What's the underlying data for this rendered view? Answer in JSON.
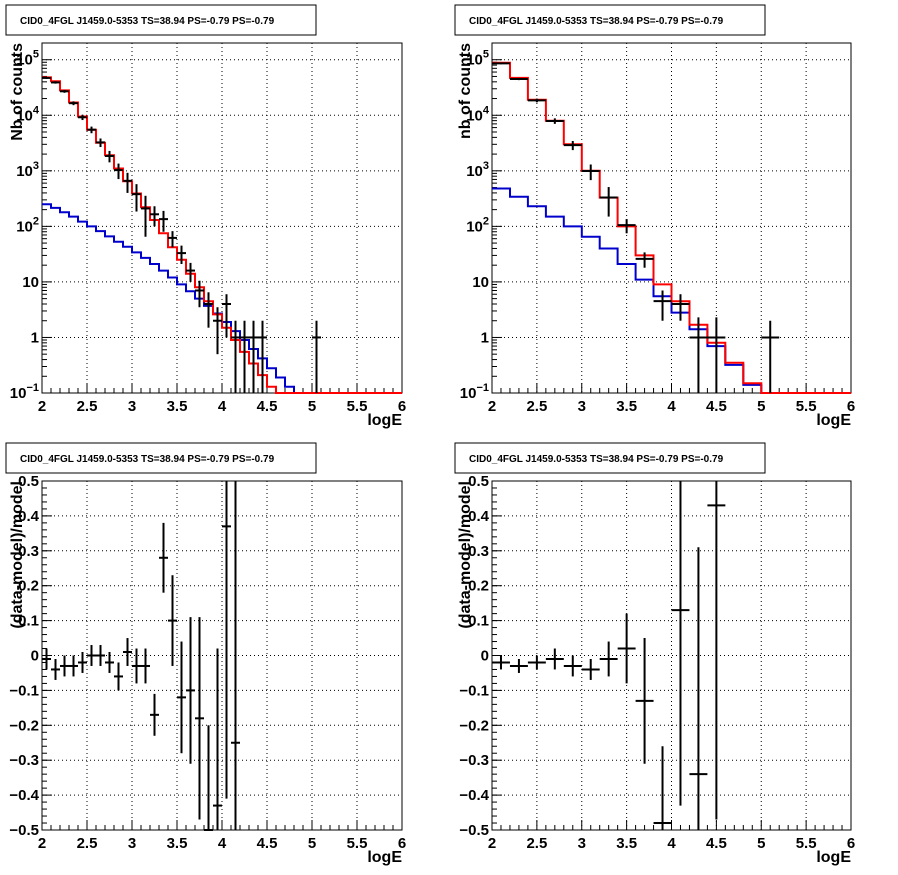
{
  "panels": [
    {
      "title": "CID0_4FGL J1459.0-5353 TS=38.94 PS=-0.79 PS=-0.79",
      "xlabel": "logE",
      "ylabel": "Nb of counts",
      "xlim": [
        2,
        6
      ],
      "ylim": [
        0.1,
        200000
      ],
      "log_y": true,
      "y_ticks": [
        {
          "value": 100000,
          "base": "10",
          "exp": "5"
        },
        {
          "value": 10000,
          "base": "10",
          "exp": "4"
        },
        {
          "value": 1000,
          "base": "10",
          "exp": "3"
        },
        {
          "value": 100,
          "base": "10",
          "exp": "2"
        },
        {
          "value": 10,
          "base": "10",
          "exp": ""
        },
        {
          "value": 1,
          "base": "1",
          "exp": ""
        },
        {
          "value": 0.1,
          "base": "10",
          "exp": "−1"
        }
      ],
      "x_ticks": [
        "2",
        "2.5",
        "3",
        "3.5",
        "4",
        "4.5",
        "5",
        "5.5",
        "6"
      ]
    },
    {
      "title": "CID0_4FGL J1459.0-5353 TS=38.94 PS=-0.79 PS=-0.79",
      "xlabel": "logE",
      "ylabel": "nb of counts",
      "xlim": [
        2,
        6
      ],
      "ylim": [
        0.1,
        200000
      ],
      "log_y": true,
      "y_ticks": [
        {
          "value": 100000,
          "base": "10",
          "exp": "5"
        },
        {
          "value": 10000,
          "base": "10",
          "exp": "4"
        },
        {
          "value": 1000,
          "base": "10",
          "exp": "3"
        },
        {
          "value": 100,
          "base": "10",
          "exp": "2"
        },
        {
          "value": 10,
          "base": "10",
          "exp": ""
        },
        {
          "value": 1,
          "base": "1",
          "exp": ""
        },
        {
          "value": 0.1,
          "base": "10",
          "exp": "−1"
        }
      ],
      "x_ticks": [
        "2",
        "2.5",
        "3",
        "3.5",
        "4",
        "4.5",
        "5",
        "5.5",
        "6"
      ]
    },
    {
      "title": "CID0_4FGL J1459.0-5353 TS=38.94 PS=-0.79 PS=-0.79",
      "xlabel": "logE",
      "ylabel": "(data-model)/model",
      "xlim": [
        2,
        6
      ],
      "ylim": [
        -0.5,
        0.5
      ],
      "log_y": false,
      "y_ticks": [
        {
          "value": 0.5,
          "base": "0.5",
          "exp": ""
        },
        {
          "value": 0.4,
          "base": "0.4",
          "exp": ""
        },
        {
          "value": 0.3,
          "base": "0.3",
          "exp": ""
        },
        {
          "value": 0.2,
          "base": "0.2",
          "exp": ""
        },
        {
          "value": 0.1,
          "base": "0.1",
          "exp": ""
        },
        {
          "value": 0,
          "base": "0",
          "exp": ""
        },
        {
          "value": -0.1,
          "base": "−0.1",
          "exp": ""
        },
        {
          "value": -0.2,
          "base": "−0.2",
          "exp": ""
        },
        {
          "value": -0.3,
          "base": "−0.3",
          "exp": ""
        },
        {
          "value": -0.4,
          "base": "−0.4",
          "exp": ""
        },
        {
          "value": -0.5,
          "base": "−0.5",
          "exp": ""
        }
      ],
      "x_ticks": [
        "2",
        "2.5",
        "3",
        "3.5",
        "4",
        "4.5",
        "5",
        "5.5",
        "6"
      ]
    },
    {
      "title": "CID0_4FGL J1459.0-5353 TS=38.94 PS=-0.79 PS=-0.79",
      "xlabel": "logE",
      "ylabel": "(data-model)/model",
      "xlim": [
        2,
        6
      ],
      "ylim": [
        -0.5,
        0.5
      ],
      "log_y": false,
      "y_ticks": [
        {
          "value": 0.5,
          "base": "0.5",
          "exp": ""
        },
        {
          "value": 0.4,
          "base": "0.4",
          "exp": ""
        },
        {
          "value": 0.3,
          "base": "0.3",
          "exp": ""
        },
        {
          "value": 0.2,
          "base": "0.2",
          "exp": ""
        },
        {
          "value": 0.1,
          "base": "0.1",
          "exp": ""
        },
        {
          "value": 0,
          "base": "0",
          "exp": ""
        },
        {
          "value": -0.1,
          "base": "−0.1",
          "exp": ""
        },
        {
          "value": -0.2,
          "base": "−0.2",
          "exp": ""
        },
        {
          "value": -0.3,
          "base": "−0.3",
          "exp": ""
        },
        {
          "value": -0.4,
          "base": "−0.4",
          "exp": ""
        },
        {
          "value": -0.5,
          "base": "−0.5",
          "exp": ""
        }
      ],
      "x_ticks": [
        "2",
        "2.5",
        "3",
        "3.5",
        "4",
        "4.5",
        "5",
        "5.5",
        "6"
      ]
    }
  ],
  "colors": {
    "data": "#000000",
    "total_model": "#ff0000",
    "source_model": "#0000cc"
  },
  "chart_data": [
    {
      "type": "line",
      "title": "CID0_4FGL J1459.0-5353 TS=38.94 PS=-0.79 PS=-0.79",
      "xlabel": "logE",
      "ylabel": "Nb of counts",
      "ylim": [
        0.1,
        200000
      ],
      "log_y": true,
      "bin_edges": [
        2.0,
        2.1,
        2.2,
        2.3,
        2.4,
        2.5,
        2.6,
        2.7,
        2.8,
        2.9,
        3.0,
        3.1,
        3.2,
        3.3,
        3.4,
        3.5,
        3.6,
        3.7,
        3.8,
        3.9,
        4.0,
        4.1,
        4.2,
        4.3,
        4.4,
        4.5,
        4.6,
        4.7,
        4.8,
        4.9,
        5.0,
        5.1,
        5.2,
        5.3,
        5.4,
        5.5,
        5.6,
        5.7,
        5.8,
        5.9,
        6.0
      ],
      "series": [
        {
          "values": [
            48000,
            41000,
            28000,
            17000,
            9500,
            5500,
            3200,
            1900,
            1100,
            650,
            390,
            220,
            130,
            75,
            42,
            25,
            14,
            8,
            4.5,
            2.6,
            1.5,
            0.9,
            0.55,
            0.34,
            0.21,
            0.13,
            0.1,
            0.1,
            0.1,
            0.1,
            0.1,
            0.1,
            0.1,
            0.1,
            0.1,
            0.1,
            0.1,
            0.1,
            0.1,
            0.1
          ]
        },
        {
          "values": [
            250,
            215,
            180,
            150,
            122,
            100,
            82,
            66,
            53,
            43,
            34,
            27,
            21,
            16,
            12,
            9,
            6.8,
            5,
            3.7,
            2.7,
            1.9,
            1.3,
            0.9,
            0.62,
            0.42,
            0.28,
            0.19,
            0.13,
            0.1,
            0.1,
            0.1,
            0.1,
            0.1,
            0.1,
            0.1,
            0.1,
            0.1,
            0.1,
            0.1,
            0.1
          ]
        }
      ],
      "points": {
        "x": [
          2.05,
          2.15,
          2.25,
          2.35,
          2.45,
          2.55,
          2.65,
          2.75,
          2.85,
          2.95,
          3.05,
          3.15,
          3.25,
          3.35,
          3.45,
          3.55,
          3.65,
          3.75,
          3.85,
          3.95,
          4.05,
          4.15,
          4.25,
          4.35,
          4.45,
          5.05
        ],
        "y": [
          47000,
          39000,
          27000,
          16500,
          9200,
          5500,
          3250,
          1850,
          1030,
          660,
          380,
          210,
          165,
          135,
          62,
          33,
          16,
          7,
          4,
          2,
          4,
          1,
          1,
          1,
          1,
          1
        ],
        "err_low": [
          2000,
          1900,
          1600,
          1300,
          1000,
          750,
          570,
          430,
          320,
          260,
          195,
          145,
          65,
          55,
          20,
          12,
          6,
          3.5,
          2.5,
          1.5,
          3,
          1,
          1,
          1,
          1,
          1
        ],
        "err_high": [
          2000,
          1900,
          1600,
          1300,
          1000,
          750,
          570,
          430,
          320,
          260,
          195,
          145,
          65,
          55,
          20,
          12,
          6,
          3.5,
          2.5,
          1.5,
          2,
          1,
          1,
          1,
          1,
          1
        ]
      }
    },
    {
      "type": "line",
      "title": "CID0_4FGL J1459.0-5353 TS=38.94 PS=-0.79 PS=-0.79",
      "xlabel": "logE",
      "ylabel": "nb of counts",
      "ylim": [
        0.1,
        200000
      ],
      "log_y": true,
      "bin_edges": [
        2.0,
        2.2,
        2.4,
        2.6,
        2.8,
        3.0,
        3.2,
        3.4,
        3.6,
        3.8,
        4.0,
        4.2,
        4.4,
        4.6,
        4.8,
        5.0,
        5.2,
        5.4,
        5.6,
        5.8,
        6.0
      ],
      "series": [
        {
          "values": [
            88000,
            47000,
            19000,
            8000,
            3000,
            1000,
            330,
            100,
            30,
            9,
            4.5,
            1.7,
            0.8,
            0.35,
            0.15,
            0.1,
            0.1,
            0.1,
            0.1,
            0.1
          ]
        },
        {
          "values": [
            480,
            340,
            230,
            150,
            100,
            65,
            40,
            21,
            11,
            5.5,
            2.8,
            1.4,
            0.7,
            0.32,
            0.14,
            0.1,
            0.1,
            0.1,
            0.1,
            0.1
          ]
        }
      ],
      "points": {
        "x": [
          2.1,
          2.3,
          2.5,
          2.7,
          2.9,
          3.1,
          3.3,
          3.5,
          3.7,
          3.9,
          4.1,
          4.3,
          4.5,
          5.1
        ],
        "y": [
          86000,
          45000,
          18500,
          7900,
          2900,
          990,
          330,
          105,
          26,
          4.5,
          4,
          1,
          1,
          1
        ],
        "err_low": [
          2900,
          2100,
          1400,
          900,
          540,
          310,
          180,
          30,
          8,
          2.5,
          2,
          1,
          1,
          1
        ],
        "err_high": [
          2900,
          2100,
          1400,
          900,
          540,
          310,
          180,
          30,
          8,
          2.5,
          2,
          1.3,
          1.3,
          1
        ]
      }
    },
    {
      "type": "scatter",
      "title": "CID0_4FGL J1459.0-5353 TS=38.94 PS=-0.79 PS=-0.79",
      "xlabel": "logE",
      "ylabel": "(data-model)/model",
      "ylim": [
        -0.5,
        0.5
      ],
      "points": {
        "x": [
          2.05,
          2.15,
          2.25,
          2.35,
          2.45,
          2.55,
          2.65,
          2.75,
          2.85,
          2.95,
          3.05,
          3.15,
          3.25,
          3.35,
          3.45,
          3.55,
          3.65,
          3.75,
          3.85,
          3.95,
          4.05,
          4.15
        ],
        "y": [
          -0.01,
          -0.04,
          -0.03,
          -0.03,
          -0.02,
          0.0,
          0.0,
          -0.02,
          -0.06,
          0.01,
          -0.03,
          -0.03,
          -0.17,
          0.28,
          0.1,
          -0.12,
          -0.1,
          -0.18,
          -0.5,
          -0.43,
          0.37,
          -0.25
        ],
        "err": [
          0.03,
          0.03,
          0.03,
          0.03,
          0.03,
          0.03,
          0.03,
          0.03,
          0.04,
          0.04,
          0.05,
          0.05,
          0.06,
          0.1,
          0.13,
          0.16,
          0.21,
          0.29,
          0.3,
          0.45,
          0.78,
          0.9
        ]
      }
    },
    {
      "type": "scatter",
      "title": "CID0_4FGL J1459.0-5353 TS=38.94 PS=-0.79 PS=-0.79",
      "xlabel": "logE",
      "ylabel": "(data-model)/model",
      "ylim": [
        -0.5,
        0.5
      ],
      "points": {
        "x": [
          2.1,
          2.3,
          2.5,
          2.7,
          2.9,
          3.1,
          3.3,
          3.5,
          3.7,
          3.9,
          4.1,
          4.3,
          4.5
        ],
        "y": [
          -0.02,
          -0.03,
          -0.02,
          -0.01,
          -0.03,
          -0.04,
          -0.01,
          0.02,
          -0.13,
          -0.48,
          0.13,
          -0.34,
          0.43
        ],
        "err": [
          0.02,
          0.02,
          0.02,
          0.03,
          0.03,
          0.03,
          0.05,
          0.1,
          0.18,
          0.22,
          0.56,
          0.65,
          0.9
        ]
      }
    }
  ]
}
